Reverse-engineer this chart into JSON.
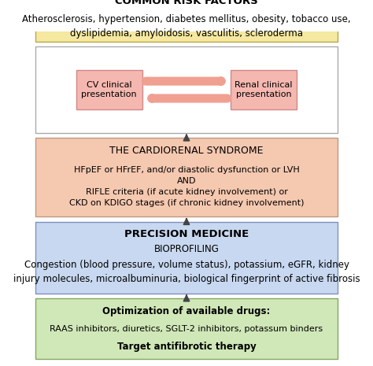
{
  "bg_color": "#ffffff",
  "box1": {
    "facecolor": "#f5e8a0",
    "edgecolor": "#b8a84a",
    "title": "COMMON RISK FACTORS",
    "body": "Atherosclerosis, hypertension, diabetes mellitus, obesity, tobacco use,\ndyslipidemia, amyloidosis, vasculitis, scleroderma",
    "title_size": 9.5,
    "body_size": 8.5
  },
  "box_mid": {
    "facecolor": "#ffffff",
    "edgecolor": "#aaaaaa"
  },
  "cv_box": {
    "label": "CV clinical\npresentation",
    "facecolor": "#f5b8b0",
    "edgecolor": "#d08888",
    "fontsize": 8
  },
  "renal_box": {
    "label": "Renal clinical\npresentation",
    "facecolor": "#f5b8b0",
    "edgecolor": "#d08888",
    "fontsize": 8
  },
  "arrow_mid_color": "#f0a090",
  "box3": {
    "facecolor": "#f5c8b0",
    "edgecolor": "#c09880",
    "title": "THE CARDIORENAL SYNDROME",
    "body": "HFpEF or HFrEF, and/or diastolic dysfunction or LVH\nAND\nRIFLE criteria (if acute kidney involvement) or\nCKD on KDIGO stages (if chronic kidney involvement)",
    "title_size": 9,
    "body_size": 8
  },
  "box4": {
    "facecolor": "#c8d8f0",
    "edgecolor": "#8090c0",
    "title": "PRECISION MEDICINE",
    "subtitle": "BIOPROFILING",
    "body": "Congestion (blood pressure, volume status), potassium, eGFR, kidney\ninjury molecules, microalbuminuria, biological fingerprint of active fibrosis",
    "title_size": 9.5,
    "subtitle_size": 8.5,
    "body_size": 8.5
  },
  "box5": {
    "facecolor": "#d0e8b8",
    "edgecolor": "#80a860",
    "line1": "Optimization of available drugs:",
    "line2": "RAAS inhibitors, diuretics, SGLT-2 inhibitors, potassum binders",
    "line3": "Target antifibrotic therapy",
    "line1_size": 8.5,
    "line2_size": 8,
    "line3_size": 8.5
  },
  "down_arrow_color": "#444444",
  "lw": 1.0
}
